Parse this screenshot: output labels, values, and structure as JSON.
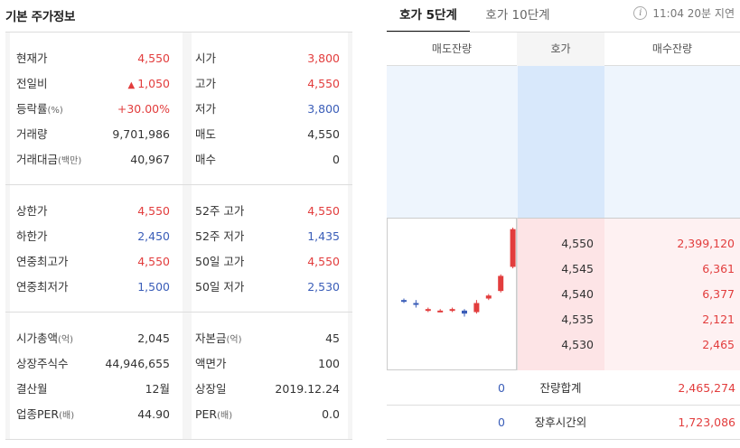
{
  "left_panel": {
    "title": "기본 주가정보",
    "group1": [
      {
        "l_label": "현재가",
        "l_unit": "",
        "l_value": "4,550",
        "l_color": "red",
        "l_arrow": "",
        "r_label": "시가",
        "r_unit": "",
        "r_value": "3,800",
        "r_color": "red"
      },
      {
        "l_label": "전일비",
        "l_unit": "",
        "l_value": "1,050",
        "l_color": "red",
        "l_arrow": "▲",
        "r_label": "고가",
        "r_unit": "",
        "r_value": "4,550",
        "r_color": "red"
      },
      {
        "l_label": "등락률",
        "l_unit": "(%)",
        "l_value": "+30.00%",
        "l_color": "red",
        "l_arrow": "",
        "r_label": "저가",
        "r_unit": "",
        "r_value": "3,800",
        "r_color": "blue"
      },
      {
        "l_label": "거래량",
        "l_unit": "",
        "l_value": "9,701,986",
        "l_color": "",
        "l_arrow": "",
        "r_label": "매도",
        "r_unit": "",
        "r_value": "4,550",
        "r_color": ""
      },
      {
        "l_label": "거래대금",
        "l_unit": "(백만)",
        "l_value": "40,967",
        "l_color": "",
        "l_arrow": "",
        "r_label": "매수",
        "r_unit": "",
        "r_value": "0",
        "r_color": ""
      }
    ],
    "group2": [
      {
        "l_label": "상한가",
        "l_unit": "",
        "l_value": "4,550",
        "l_color": "red",
        "l_arrow": "",
        "r_label": "52주 고가",
        "r_unit": "",
        "r_value": "4,550",
        "r_color": "red"
      },
      {
        "l_label": "하한가",
        "l_unit": "",
        "l_value": "2,450",
        "l_color": "blue",
        "l_arrow": "",
        "r_label": "52주 저가",
        "r_unit": "",
        "r_value": "1,435",
        "r_color": "blue"
      },
      {
        "l_label": "연중최고가",
        "l_unit": "",
        "l_value": "4,550",
        "l_color": "red",
        "l_arrow": "",
        "r_label": "50일 고가",
        "r_unit": "",
        "r_value": "4,550",
        "r_color": "red"
      },
      {
        "l_label": "연중최저가",
        "l_unit": "",
        "l_value": "1,500",
        "l_color": "blue",
        "l_arrow": "",
        "r_label": "50일 저가",
        "r_unit": "",
        "r_value": "2,530",
        "r_color": "blue"
      }
    ],
    "group3": [
      {
        "l_label": "시가총액",
        "l_unit": "(억)",
        "l_value": "2,045",
        "l_color": "",
        "l_arrow": "",
        "r_label": "자본금",
        "r_unit": "(억)",
        "r_value": "45",
        "r_color": ""
      },
      {
        "l_label": "상장주식수",
        "l_unit": "",
        "l_value": "44,946,655",
        "l_color": "",
        "l_arrow": "",
        "r_label": "액면가",
        "r_unit": "",
        "r_value": "100",
        "r_color": ""
      },
      {
        "l_label": "결산월",
        "l_unit": "",
        "l_value": "12월",
        "l_color": "",
        "l_arrow": "",
        "r_label": "상장일",
        "r_unit": "",
        "r_value": "2019.12.24",
        "r_color": ""
      },
      {
        "l_label": "업종PER",
        "l_unit": "(배)",
        "l_value": "44.90",
        "l_color": "",
        "l_arrow": "",
        "r_label": "PER",
        "r_unit": "(배)",
        "r_value": "0.0",
        "r_color": ""
      }
    ]
  },
  "right_panel": {
    "tabs": [
      "호가 5단계",
      "호가 10단계"
    ],
    "delay_text": "11:04 20분 지연",
    "headers": [
      "매도잔량",
      "호가",
      "매수잔량"
    ],
    "bids": [
      {
        "price": "4,550",
        "volume": "2,399,120"
      },
      {
        "price": "4,545",
        "volume": "6,361"
      },
      {
        "price": "4,540",
        "volume": "6,377"
      },
      {
        "price": "4,535",
        "volume": "2,121"
      },
      {
        "price": "4,530",
        "volume": "2,465"
      }
    ],
    "summary": [
      {
        "ask": "0",
        "label": "잔량합계",
        "bid": "2,465,274"
      },
      {
        "ask": "0",
        "label": "장후시간외",
        "bid": "1,723,086"
      }
    ]
  },
  "colors": {
    "red": "#e23d3d",
    "blue": "#3a5db8"
  },
  "mini_candles": [
    {
      "o": 0.46,
      "c": 0.45,
      "h": 0.47,
      "l": 0.44,
      "up": false
    },
    {
      "o": 0.44,
      "c": 0.43,
      "h": 0.46,
      "l": 0.41,
      "up": false
    },
    {
      "o": 0.4,
      "c": 0.39,
      "h": 0.41,
      "l": 0.38,
      "up": true
    },
    {
      "o": 0.39,
      "c": 0.39,
      "h": 0.4,
      "l": 0.38,
      "up": true
    },
    {
      "o": 0.39,
      "c": 0.4,
      "h": 0.41,
      "l": 0.38,
      "up": true
    },
    {
      "o": 0.39,
      "c": 0.37,
      "h": 0.4,
      "l": 0.35,
      "up": false
    },
    {
      "o": 0.38,
      "c": 0.44,
      "h": 0.46,
      "l": 0.37,
      "up": true
    },
    {
      "o": 0.47,
      "c": 0.49,
      "h": 0.5,
      "l": 0.46,
      "up": true
    },
    {
      "o": 0.52,
      "c": 0.62,
      "h": 0.63,
      "l": 0.51,
      "up": true
    },
    {
      "o": 0.68,
      "c": 0.93,
      "h": 0.94,
      "l": 0.67,
      "up": true
    }
  ]
}
